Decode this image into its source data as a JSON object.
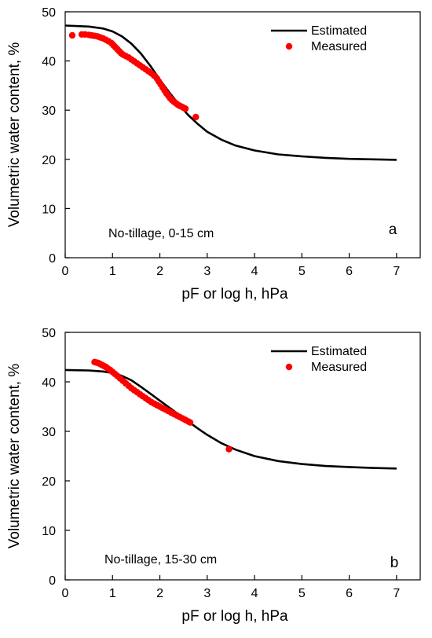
{
  "chart_data": [
    {
      "type": "scatter",
      "panel_label": "a",
      "annotation": "No-tillage, 0-15 cm",
      "xlabel": "pF or log h, hPa",
      "ylabel": "Volumetric water content, %",
      "xlim": [
        0,
        7.5
      ],
      "ylim": [
        0,
        50
      ],
      "xticks": [
        0,
        1,
        2,
        3,
        4,
        5,
        6,
        7
      ],
      "yticks": [
        0,
        10,
        20,
        30,
        40,
        50
      ],
      "legend": {
        "position": "top-right",
        "entries": [
          "Estimated",
          "Measured"
        ]
      },
      "series": [
        {
          "name": "Estimated",
          "kind": "line",
          "color": "#000000",
          "x": [
            0,
            0.5,
            0.8,
            1.0,
            1.2,
            1.4,
            1.6,
            1.8,
            2.0,
            2.2,
            2.4,
            2.6,
            2.8,
            3.0,
            3.3,
            3.6,
            4.0,
            4.5,
            5.0,
            5.5,
            6.0,
            6.5,
            7.0
          ],
          "y": [
            47.2,
            47.0,
            46.6,
            46.0,
            45.0,
            43.5,
            41.5,
            39.0,
            36.2,
            33.6,
            31.2,
            29.0,
            27.2,
            25.6,
            24.0,
            22.8,
            21.8,
            21.0,
            20.6,
            20.3,
            20.1,
            20.0,
            19.9
          ]
        },
        {
          "name": "Measured",
          "kind": "points",
          "color": "#ff0000",
          "x": [
            0.15,
            0.35,
            0.42,
            0.5,
            0.56,
            0.62,
            0.68,
            0.74,
            0.8,
            0.86,
            0.92,
            0.98,
            1.02,
            1.06,
            1.1,
            1.14,
            1.18,
            1.22,
            1.28,
            1.34,
            1.4,
            1.46,
            1.52,
            1.58,
            1.64,
            1.7,
            1.76,
            1.82,
            1.88,
            1.94,
            1.98,
            2.02,
            2.06,
            2.1,
            2.14,
            2.18,
            2.22,
            2.26,
            2.3,
            2.34,
            2.38,
            2.42,
            2.46,
            2.5,
            2.54,
            2.76
          ],
          "y": [
            45.2,
            45.4,
            45.4,
            45.3,
            45.2,
            45.1,
            45.0,
            44.8,
            44.6,
            44.3,
            44.0,
            43.6,
            43.2,
            42.8,
            42.4,
            42.0,
            41.6,
            41.3,
            41.0,
            40.7,
            40.3,
            39.9,
            39.5,
            39.1,
            38.7,
            38.3,
            37.9,
            37.5,
            37.0,
            36.4,
            35.8,
            35.2,
            34.6,
            34.0,
            33.4,
            32.9,
            32.4,
            32.0,
            31.7,
            31.4,
            31.1,
            30.9,
            30.7,
            30.5,
            30.3,
            28.6
          ]
        }
      ]
    },
    {
      "type": "scatter",
      "panel_label": "b",
      "annotation": "No-tillage, 15-30 cm",
      "xlabel": "pF or log h, hPa",
      "ylabel": "Volumetric water content, %",
      "xlim": [
        0,
        7.5
      ],
      "ylim": [
        0,
        50
      ],
      "xticks": [
        0,
        1,
        2,
        3,
        4,
        5,
        6,
        7
      ],
      "yticks": [
        0,
        10,
        20,
        30,
        40,
        50
      ],
      "legend": {
        "position": "top-right",
        "entries": [
          "Estimated",
          "Measured"
        ]
      },
      "series": [
        {
          "name": "Estimated",
          "kind": "line",
          "color": "#000000",
          "x": [
            0,
            0.5,
            0.8,
            1.0,
            1.2,
            1.4,
            1.6,
            1.8,
            2.0,
            2.2,
            2.4,
            2.6,
            2.8,
            3.0,
            3.3,
            3.6,
            4.0,
            4.5,
            5.0,
            5.5,
            6.0,
            6.5,
            7.0
          ],
          "y": [
            42.4,
            42.3,
            42.1,
            41.8,
            41.2,
            40.3,
            39.0,
            37.6,
            36.2,
            34.8,
            33.4,
            32.0,
            30.6,
            29.3,
            27.6,
            26.3,
            25.0,
            24.0,
            23.4,
            23.0,
            22.8,
            22.6,
            22.5
          ]
        },
        {
          "name": "Measured",
          "kind": "points",
          "color": "#ff0000",
          "x": [
            0.62,
            0.66,
            0.7,
            0.74,
            0.78,
            0.82,
            0.86,
            0.9,
            0.95,
            1.0,
            1.05,
            1.1,
            1.16,
            1.22,
            1.28,
            1.34,
            1.4,
            1.46,
            1.52,
            1.58,
            1.64,
            1.7,
            1.76,
            1.82,
            1.88,
            1.94,
            2.0,
            2.06,
            2.12,
            2.18,
            2.24,
            2.3,
            2.36,
            2.42,
            2.48,
            2.54,
            2.6,
            2.64,
            3.46
          ],
          "y": [
            44.0,
            43.9,
            43.8,
            43.6,
            43.4,
            43.2,
            43.0,
            42.7,
            42.4,
            42.0,
            41.6,
            41.2,
            40.7,
            40.2,
            39.7,
            39.2,
            38.7,
            38.3,
            37.9,
            37.5,
            37.1,
            36.7,
            36.3,
            35.9,
            35.6,
            35.3,
            35.0,
            34.7,
            34.4,
            34.1,
            33.8,
            33.5,
            33.2,
            32.9,
            32.6,
            32.3,
            32.0,
            31.8,
            26.4
          ]
        }
      ]
    }
  ]
}
